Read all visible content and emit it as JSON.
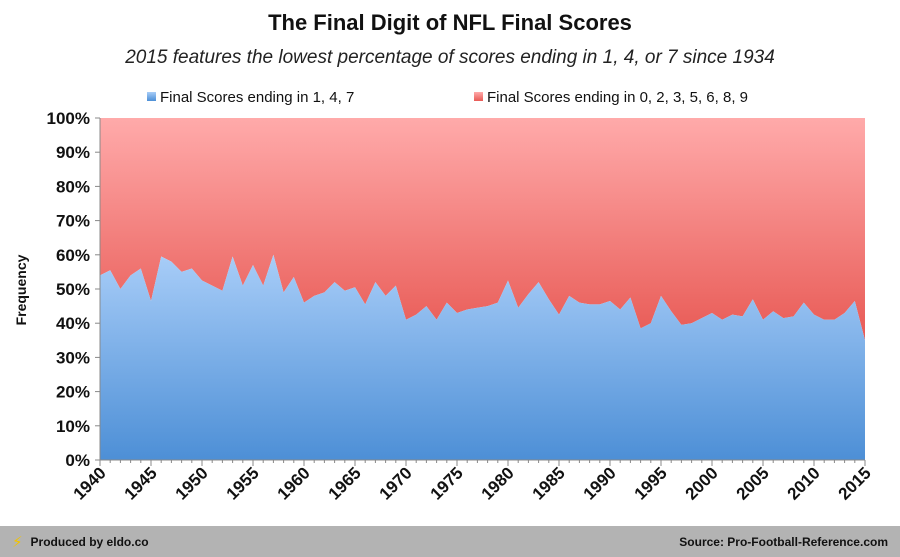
{
  "chart_data": {
    "type": "area",
    "stacked": true,
    "percent": true,
    "title": "The Final Digit of NFL Final Scores",
    "subtitle": "2015 features the lowest percentage of scores ending in 1, 4, or 7 since 1934",
    "ylabel": "Frequency",
    "xlabel": "",
    "xlim": [
      1940,
      2015
    ],
    "ylim": [
      0,
      100
    ],
    "y_ticks": [
      "0%",
      "10%",
      "20%",
      "30%",
      "40%",
      "50%",
      "60%",
      "70%",
      "80%",
      "90%",
      "100%"
    ],
    "x_ticks": [
      "1940",
      "1945",
      "1950",
      "1955",
      "1960",
      "1965",
      "1970",
      "1975",
      "1980",
      "1985",
      "1990",
      "1995",
      "2000",
      "2005",
      "2010",
      "2015"
    ],
    "legend_position": "top",
    "colors": {
      "series_a_top": "#a8cdf8",
      "series_a_bottom": "#4d8fd6",
      "series_b_top": "#ffaaaa",
      "series_b_bottom": "#e85a55"
    },
    "x": [
      1940,
      1941,
      1942,
      1943,
      1944,
      1945,
      1946,
      1947,
      1948,
      1949,
      1950,
      1951,
      1952,
      1953,
      1954,
      1955,
      1956,
      1957,
      1958,
      1959,
      1960,
      1961,
      1962,
      1963,
      1964,
      1965,
      1966,
      1967,
      1968,
      1969,
      1970,
      1971,
      1972,
      1973,
      1974,
      1975,
      1976,
      1977,
      1978,
      1979,
      1980,
      1981,
      1982,
      1983,
      1984,
      1985,
      1986,
      1987,
      1988,
      1989,
      1990,
      1991,
      1992,
      1993,
      1994,
      1995,
      1996,
      1997,
      1998,
      1999,
      2000,
      2001,
      2002,
      2003,
      2004,
      2005,
      2006,
      2007,
      2008,
      2009,
      2010,
      2011,
      2012,
      2013,
      2014,
      2015
    ],
    "series": [
      {
        "name": "Final Scores ending in 1, 4, 7",
        "values": [
          54,
          55.5,
          50,
          54,
          56,
          46.5,
          59.5,
          58,
          55,
          56,
          52.5,
          51,
          49.5,
          59.5,
          51,
          57,
          51,
          60,
          49,
          53.5,
          46,
          48,
          49,
          52,
          49.5,
          50.5,
          45.5,
          52,
          48,
          51,
          41,
          42.5,
          45,
          41,
          46,
          43,
          44,
          44.5,
          45,
          46,
          52.5,
          44.5,
          48.5,
          52,
          47,
          42.5,
          48,
          46,
          45.5,
          45.5,
          46.5,
          44,
          47.5,
          38.5,
          40,
          48,
          43.5,
          39.5,
          40,
          41.5,
          43,
          41,
          42.5,
          42,
          47,
          41,
          43.5,
          41.5,
          42,
          46,
          42.5,
          41,
          41,
          43,
          46.5,
          35
        ]
      },
      {
        "name": "Final Scores ending in 0, 2, 3, 5, 6, 8, 9",
        "values": [
          46,
          44.5,
          50,
          46,
          44,
          53.5,
          40.5,
          42,
          45,
          44,
          47.5,
          49,
          50.5,
          40.5,
          49,
          43,
          49,
          40,
          51,
          46.5,
          54,
          52,
          51,
          48,
          50.5,
          49.5,
          54.5,
          48,
          52,
          49,
          59,
          57.5,
          55,
          59,
          54,
          57,
          56,
          55.5,
          55,
          54,
          47.5,
          55.5,
          51.5,
          48,
          53,
          57.5,
          52,
          54,
          54.5,
          54.5,
          53.5,
          56,
          52.5,
          61.5,
          60,
          52,
          56.5,
          60.5,
          60,
          58.5,
          57,
          59,
          57.5,
          58,
          53,
          59,
          56.5,
          58.5,
          58,
          54,
          57.5,
          59,
          59,
          57,
          53.5,
          65
        ]
      }
    ]
  },
  "footer": {
    "left": "Produced by eldo.co",
    "right": "Source: Pro-Football-Reference.com"
  }
}
